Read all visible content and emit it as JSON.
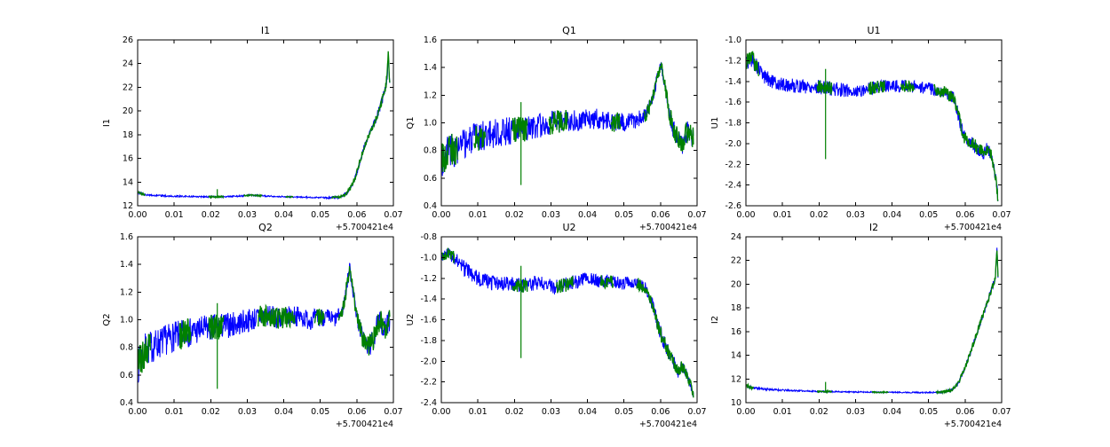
{
  "figure": {
    "background": "#ffffff",
    "blue_color": "#0000ff",
    "green_color": "#008000",
    "x_offset_label": "+5.700421e4"
  },
  "chart_data": [
    {
      "type": "line",
      "title": "I1",
      "ylabel": "I1",
      "xlabel": "",
      "legend": "none",
      "grid": false,
      "xlim": [
        0,
        0.07
      ],
      "ylim": [
        12,
        26
      ],
      "xticks": [
        0,
        0.01,
        0.02,
        0.03,
        0.04,
        0.05,
        0.06,
        0.07
      ],
      "xtick_labels": [
        "0.00",
        "0.01",
        "0.02",
        "0.03",
        "0.04",
        "0.05",
        "0.06",
        "0.07"
      ],
      "yticks": [
        12,
        14,
        16,
        18,
        20,
        22,
        24,
        26
      ],
      "ytick_labels": [
        "12",
        "14",
        "16",
        "18",
        "20",
        "22",
        "24",
        "26"
      ],
      "x_offset_label": "+5.700421e4",
      "x_range": [
        0.0002,
        0.069
      ],
      "trend": [
        [
          0,
          13.15
        ],
        [
          0.001,
          13.0
        ],
        [
          0.003,
          12.9
        ],
        [
          0.008,
          12.82
        ],
        [
          0.015,
          12.78
        ],
        [
          0.022,
          12.75
        ],
        [
          0.028,
          12.82
        ],
        [
          0.031,
          12.9
        ],
        [
          0.035,
          12.82
        ],
        [
          0.045,
          12.72
        ],
        [
          0.052,
          12.68
        ],
        [
          0.055,
          12.72
        ],
        [
          0.057,
          13.0
        ],
        [
          0.0585,
          13.6
        ],
        [
          0.0595,
          14.3
        ],
        [
          0.061,
          15.9
        ],
        [
          0.0625,
          17.4
        ],
        [
          0.064,
          18.4
        ],
        [
          0.0652,
          19.3
        ],
        [
          0.066,
          20.0
        ],
        [
          0.0672,
          21.2
        ],
        [
          0.068,
          22.2
        ],
        [
          0.0683,
          23.0
        ],
        [
          0.0686,
          24.7
        ],
        [
          0.069,
          22.4
        ]
      ],
      "noise": [
        [
          0,
          0.1
        ],
        [
          0.004,
          0.07
        ],
        [
          0.02,
          0.06
        ],
        [
          0.05,
          0.06
        ],
        [
          0.056,
          0.1
        ],
        [
          0.06,
          0.25
        ],
        [
          0.064,
          0.3
        ],
        [
          0.0685,
          0.4
        ],
        [
          0.069,
          0.3
        ]
      ],
      "green_segments": [
        [
          0.0002,
          0.002
        ],
        [
          0.0195,
          0.0235
        ],
        [
          0.029,
          0.034
        ],
        [
          0.0405,
          0.0425
        ],
        [
          0.053,
          0.069
        ]
      ],
      "spike": {
        "x": 0.0218,
        "y_from": 12.7,
        "y_to": 13.4
      }
    },
    {
      "type": "line",
      "title": "Q1",
      "ylabel": "Q1",
      "xlabel": "",
      "legend": "none",
      "grid": false,
      "xlim": [
        0,
        0.07
      ],
      "ylim": [
        0.4,
        1.6
      ],
      "xticks": [
        0,
        0.01,
        0.02,
        0.03,
        0.04,
        0.05,
        0.06,
        0.07
      ],
      "xtick_labels": [
        "0.00",
        "0.01",
        "0.02",
        "0.03",
        "0.04",
        "0.05",
        "0.06",
        "0.07"
      ],
      "yticks": [
        0.4,
        0.6,
        0.8,
        1.0,
        1.2,
        1.4,
        1.6
      ],
      "ytick_labels": [
        "0.4",
        "0.6",
        "0.8",
        "1.0",
        "1.2",
        "1.4",
        "1.6"
      ],
      "x_offset_label": "+5.700421e4",
      "x_range": [
        0.0002,
        0.069
      ],
      "trend": [
        [
          0,
          0.72
        ],
        [
          0.002,
          0.82
        ],
        [
          0.004,
          0.8
        ],
        [
          0.007,
          0.86
        ],
        [
          0.01,
          0.9
        ],
        [
          0.014,
          0.92
        ],
        [
          0.018,
          0.94
        ],
        [
          0.022,
          0.95
        ],
        [
          0.026,
          0.97
        ],
        [
          0.03,
          1.0
        ],
        [
          0.034,
          1.02
        ],
        [
          0.038,
          1.02
        ],
        [
          0.042,
          1.03
        ],
        [
          0.046,
          1.01
        ],
        [
          0.05,
          1.0
        ],
        [
          0.053,
          1.02
        ],
        [
          0.056,
          1.05
        ],
        [
          0.058,
          1.2
        ],
        [
          0.0593,
          1.35
        ],
        [
          0.0602,
          1.42
        ],
        [
          0.061,
          1.3
        ],
        [
          0.0622,
          1.1
        ],
        [
          0.0635,
          0.95
        ],
        [
          0.065,
          0.88
        ],
        [
          0.066,
          0.85
        ],
        [
          0.067,
          0.92
        ],
        [
          0.068,
          0.95
        ],
        [
          0.069,
          0.88
        ]
      ],
      "noise": [
        [
          0,
          0.13
        ],
        [
          0.008,
          0.11
        ],
        [
          0.02,
          0.1
        ],
        [
          0.035,
          0.08
        ],
        [
          0.05,
          0.07
        ],
        [
          0.057,
          0.05
        ],
        [
          0.0605,
          0.04
        ],
        [
          0.063,
          0.07
        ],
        [
          0.069,
          0.08
        ]
      ],
      "green_segments": [
        [
          0.0002,
          0.0045
        ],
        [
          0.009,
          0.012
        ],
        [
          0.0195,
          0.0235
        ],
        [
          0.0295,
          0.0345
        ],
        [
          0.0465,
          0.049
        ],
        [
          0.0555,
          0.069
        ]
      ],
      "spike": {
        "x": 0.0218,
        "y_from": 0.55,
        "y_to": 1.15
      }
    },
    {
      "type": "line",
      "title": "U1",
      "ylabel": "U1",
      "xlabel": "",
      "legend": "none",
      "grid": false,
      "xlim": [
        0,
        0.07
      ],
      "ylim": [
        -2.6,
        -1.0
      ],
      "xticks": [
        0,
        0.01,
        0.02,
        0.03,
        0.04,
        0.05,
        0.06,
        0.07
      ],
      "xtick_labels": [
        "0.00",
        "0.01",
        "0.02",
        "0.03",
        "0.04",
        "0.05",
        "0.06",
        "0.07"
      ],
      "yticks": [
        -2.6,
        -2.4,
        -2.2,
        -2.0,
        -1.8,
        -1.6,
        -1.4,
        -1.2,
        -1.0
      ],
      "ytick_labels": [
        "-2.6",
        "-2.4",
        "-2.2",
        "-2.0",
        "-1.8",
        "-1.6",
        "-1.4",
        "-1.2",
        "-1.0"
      ],
      "x_offset_label": "+5.700421e4",
      "x_range": [
        0.0002,
        0.069
      ],
      "trend": [
        [
          0,
          -1.22
        ],
        [
          0.0015,
          -1.18
        ],
        [
          0.003,
          -1.26
        ],
        [
          0.005,
          -1.35
        ],
        [
          0.008,
          -1.42
        ],
        [
          0.012,
          -1.44
        ],
        [
          0.018,
          -1.45
        ],
        [
          0.024,
          -1.47
        ],
        [
          0.03,
          -1.5
        ],
        [
          0.034,
          -1.46
        ],
        [
          0.04,
          -1.44
        ],
        [
          0.046,
          -1.45
        ],
        [
          0.05,
          -1.47
        ],
        [
          0.054,
          -1.5
        ],
        [
          0.057,
          -1.56
        ],
        [
          0.0583,
          -1.75
        ],
        [
          0.0595,
          -1.92
        ],
        [
          0.061,
          -1.98
        ],
        [
          0.0625,
          -2.02
        ],
        [
          0.064,
          -2.06
        ],
        [
          0.0652,
          -2.1
        ],
        [
          0.066,
          -2.04
        ],
        [
          0.0672,
          -2.12
        ],
        [
          0.068,
          -2.25
        ],
        [
          0.0686,
          -2.4
        ],
        [
          0.069,
          -2.55
        ]
      ],
      "noise": [
        [
          0,
          0.09
        ],
        [
          0.004,
          0.07
        ],
        [
          0.02,
          0.07
        ],
        [
          0.045,
          0.06
        ],
        [
          0.057,
          0.06
        ],
        [
          0.062,
          0.07
        ],
        [
          0.069,
          0.05
        ]
      ],
      "green_segments": [
        [
          0.0002,
          0.0035
        ],
        [
          0.0195,
          0.0235
        ],
        [
          0.0335,
          0.038
        ],
        [
          0.0425,
          0.046
        ],
        [
          0.0515,
          0.069
        ]
      ],
      "spike": {
        "x": 0.0218,
        "y_from": -2.15,
        "y_to": -1.28
      }
    },
    {
      "type": "line",
      "title": "Q2",
      "ylabel": "Q2",
      "xlabel": "",
      "legend": "none",
      "grid": false,
      "xlim": [
        0,
        0.07
      ],
      "ylim": [
        0.4,
        1.6
      ],
      "xticks": [
        0,
        0.01,
        0.02,
        0.03,
        0.04,
        0.05,
        0.06,
        0.07
      ],
      "xtick_labels": [
        "0.00",
        "0.01",
        "0.02",
        "0.03",
        "0.04",
        "0.05",
        "0.06",
        "0.07"
      ],
      "yticks": [
        0.4,
        0.6,
        0.8,
        1.0,
        1.2,
        1.4,
        1.6
      ],
      "ytick_labels": [
        "0.4",
        "0.6",
        "0.8",
        "1.0",
        "1.2",
        "1.4",
        "1.6"
      ],
      "x_offset_label": "+5.700421e4",
      "x_range": [
        0.0002,
        0.069
      ],
      "trend": [
        [
          0,
          0.66
        ],
        [
          0.002,
          0.78
        ],
        [
          0.005,
          0.82
        ],
        [
          0.009,
          0.87
        ],
        [
          0.013,
          0.9
        ],
        [
          0.018,
          0.93
        ],
        [
          0.022,
          0.95
        ],
        [
          0.027,
          0.97
        ],
        [
          0.031,
          1.0
        ],
        [
          0.035,
          1.03
        ],
        [
          0.039,
          1.01
        ],
        [
          0.043,
          1.03
        ],
        [
          0.047,
          1.0
        ],
        [
          0.051,
          1.02
        ],
        [
          0.054,
          1.0
        ],
        [
          0.056,
          1.06
        ],
        [
          0.057,
          1.2
        ],
        [
          0.058,
          1.38
        ],
        [
          0.059,
          1.2
        ],
        [
          0.0602,
          1.0
        ],
        [
          0.0615,
          0.88
        ],
        [
          0.063,
          0.8
        ],
        [
          0.0645,
          0.85
        ],
        [
          0.0655,
          0.95
        ],
        [
          0.0665,
          1.0
        ],
        [
          0.0675,
          0.92
        ],
        [
          0.069,
          1.0
        ]
      ],
      "noise": [
        [
          0,
          0.13
        ],
        [
          0.008,
          0.11
        ],
        [
          0.02,
          0.1
        ],
        [
          0.035,
          0.08
        ],
        [
          0.05,
          0.07
        ],
        [
          0.056,
          0.05
        ],
        [
          0.059,
          0.05
        ],
        [
          0.062,
          0.08
        ],
        [
          0.069,
          0.08
        ]
      ],
      "green_segments": [
        [
          0.0002,
          0.0035
        ],
        [
          0.0115,
          0.0145
        ],
        [
          0.0195,
          0.0235
        ],
        [
          0.033,
          0.043
        ],
        [
          0.0485,
          0.051
        ],
        [
          0.055,
          0.069
        ]
      ],
      "spike": {
        "x": 0.0218,
        "y_from": 0.5,
        "y_to": 1.12
      }
    },
    {
      "type": "line",
      "title": "U2",
      "ylabel": "U2",
      "xlabel": "",
      "legend": "none",
      "grid": false,
      "xlim": [
        0,
        0.07
      ],
      "ylim": [
        -2.4,
        -0.8
      ],
      "xticks": [
        0,
        0.01,
        0.02,
        0.03,
        0.04,
        0.05,
        0.06,
        0.07
      ],
      "xtick_labels": [
        "0.00",
        "0.01",
        "0.02",
        "0.03",
        "0.04",
        "0.05",
        "0.06",
        "0.07"
      ],
      "yticks": [
        -2.4,
        -2.2,
        -2.0,
        -1.8,
        -1.6,
        -1.4,
        -1.2,
        -1.0,
        -0.8
      ],
      "ytick_labels": [
        "-2.4",
        "-2.2",
        "-2.0",
        "-1.8",
        "-1.6",
        "-1.4",
        "-1.2",
        "-1.0",
        "-0.8"
      ],
      "x_offset_label": "+5.700421e4",
      "x_range": [
        0.0002,
        0.069
      ],
      "trend": [
        [
          0,
          -1.0
        ],
        [
          0.0018,
          -0.96
        ],
        [
          0.0035,
          -1.0
        ],
        [
          0.006,
          -1.1
        ],
        [
          0.009,
          -1.18
        ],
        [
          0.013,
          -1.24
        ],
        [
          0.018,
          -1.25
        ],
        [
          0.022,
          -1.27
        ],
        [
          0.027,
          -1.24
        ],
        [
          0.031,
          -1.29
        ],
        [
          0.035,
          -1.25
        ],
        [
          0.04,
          -1.21
        ],
        [
          0.045,
          -1.23
        ],
        [
          0.05,
          -1.25
        ],
        [
          0.053,
          -1.24
        ],
        [
          0.056,
          -1.3
        ],
        [
          0.0578,
          -1.45
        ],
        [
          0.059,
          -1.62
        ],
        [
          0.0605,
          -1.78
        ],
        [
          0.062,
          -1.9
        ],
        [
          0.0635,
          -2.0
        ],
        [
          0.0648,
          -2.1
        ],
        [
          0.0658,
          -2.05
        ],
        [
          0.067,
          -2.12
        ],
        [
          0.068,
          -2.2
        ],
        [
          0.069,
          -2.33
        ]
      ],
      "noise": [
        [
          0,
          0.05
        ],
        [
          0.006,
          0.08
        ],
        [
          0.02,
          0.07
        ],
        [
          0.04,
          0.07
        ],
        [
          0.055,
          0.06
        ],
        [
          0.062,
          0.07
        ],
        [
          0.069,
          0.04
        ]
      ],
      "green_segments": [
        [
          0.0002,
          0.0035
        ],
        [
          0.0195,
          0.0235
        ],
        [
          0.0315,
          0.036
        ],
        [
          0.0435,
          0.047
        ],
        [
          0.0535,
          0.069
        ]
      ],
      "spike": {
        "x": 0.0218,
        "y_from": -1.97,
        "y_to": -1.08
      }
    },
    {
      "type": "line",
      "title": "I2",
      "ylabel": "I2",
      "xlabel": "",
      "legend": "none",
      "grid": false,
      "xlim": [
        0,
        0.07
      ],
      "ylim": [
        10,
        24
      ],
      "xticks": [
        0,
        0.01,
        0.02,
        0.03,
        0.04,
        0.05,
        0.06,
        0.07
      ],
      "xtick_labels": [
        "0.00",
        "0.01",
        "0.02",
        "0.03",
        "0.04",
        "0.05",
        "0.06",
        "0.07"
      ],
      "yticks": [
        10,
        12,
        14,
        16,
        18,
        20,
        22,
        24
      ],
      "ytick_labels": [
        "10",
        "12",
        "14",
        "16",
        "18",
        "20",
        "22",
        "24"
      ],
      "x_offset_label": "+5.700421e4",
      "x_range": [
        0.0002,
        0.069
      ],
      "trend": [
        [
          0,
          11.4
        ],
        [
          0.002,
          11.25
        ],
        [
          0.005,
          11.15
        ],
        [
          0.01,
          11.05
        ],
        [
          0.015,
          11.0
        ],
        [
          0.02,
          10.95
        ],
        [
          0.03,
          10.9
        ],
        [
          0.04,
          10.88
        ],
        [
          0.05,
          10.85
        ],
        [
          0.054,
          10.9
        ],
        [
          0.0565,
          11.1
        ],
        [
          0.058,
          11.6
        ],
        [
          0.0595,
          12.6
        ],
        [
          0.061,
          13.8
        ],
        [
          0.0625,
          15.2
        ],
        [
          0.064,
          16.6
        ],
        [
          0.0655,
          17.9
        ],
        [
          0.0665,
          18.9
        ],
        [
          0.0675,
          19.8
        ],
        [
          0.0683,
          20.6
        ],
        [
          0.0687,
          23.0
        ],
        [
          0.069,
          20.8
        ]
      ],
      "noise": [
        [
          0,
          0.18
        ],
        [
          0.004,
          0.1
        ],
        [
          0.015,
          0.06
        ],
        [
          0.04,
          0.05
        ],
        [
          0.053,
          0.07
        ],
        [
          0.057,
          0.12
        ],
        [
          0.061,
          0.25
        ],
        [
          0.066,
          0.25
        ],
        [
          0.069,
          0.3
        ]
      ],
      "green_segments": [
        [
          0.0002,
          0.002
        ],
        [
          0.0195,
          0.0235
        ],
        [
          0.0345,
          0.039
        ],
        [
          0.052,
          0.069
        ]
      ],
      "spike": {
        "x": 0.0218,
        "y_from": 10.85,
        "y_to": 11.75
      }
    }
  ]
}
